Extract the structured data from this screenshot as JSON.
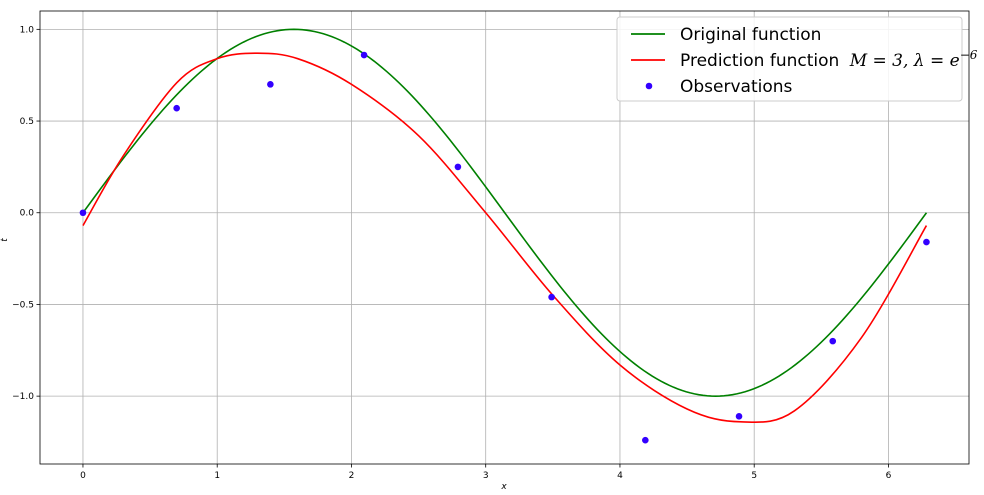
{
  "chart_data": {
    "type": "line",
    "xlabel": "x",
    "ylabel": "t",
    "xlim": [
      -0.32,
      6.6
    ],
    "ylim": [
      -1.37,
      1.1
    ],
    "xticks": [
      0,
      1,
      2,
      3,
      4,
      5,
      6
    ],
    "yticks": [
      -1.0,
      -0.5,
      0.0,
      0.5,
      1.0
    ],
    "xtick_labels": [
      "0",
      "1",
      "2",
      "3",
      "4",
      "5",
      "6"
    ],
    "ytick_labels": [
      "−1.0",
      "−0.5",
      "0.0",
      "0.5",
      "1.0"
    ],
    "grid": true,
    "legend_position": "top-right",
    "series": [
      {
        "name": "Original function",
        "kind": "line",
        "color": "#008000",
        "function": "sin",
        "x_range": [
          0,
          6.2832
        ]
      },
      {
        "name": "Prediction function",
        "name_math": "M = 3, λ = e^{−6}",
        "kind": "line",
        "color": "#ff0000",
        "x": [
          0,
          0.3,
          0.7,
          1.0,
          1.3,
          1.6,
          2.0,
          2.5,
          3.0,
          3.5,
          4.0,
          4.5,
          4.9,
          5.3,
          5.8,
          6.283
        ],
        "y": [
          -0.07,
          0.31,
          0.71,
          0.84,
          0.87,
          0.84,
          0.7,
          0.42,
          0.0,
          -0.45,
          -0.83,
          -1.07,
          -1.14,
          -1.08,
          -0.68,
          -0.07
        ]
      },
      {
        "name": "Observations",
        "kind": "scatter",
        "color": "#3300ff",
        "x": [
          0,
          0.698,
          1.396,
          2.094,
          2.793,
          3.491,
          4.189,
          4.887,
          5.585,
          6.283
        ],
        "y": [
          0.0,
          0.57,
          0.7,
          0.86,
          0.25,
          -0.46,
          -1.24,
          -1.11,
          -0.7,
          -0.16
        ]
      }
    ]
  }
}
